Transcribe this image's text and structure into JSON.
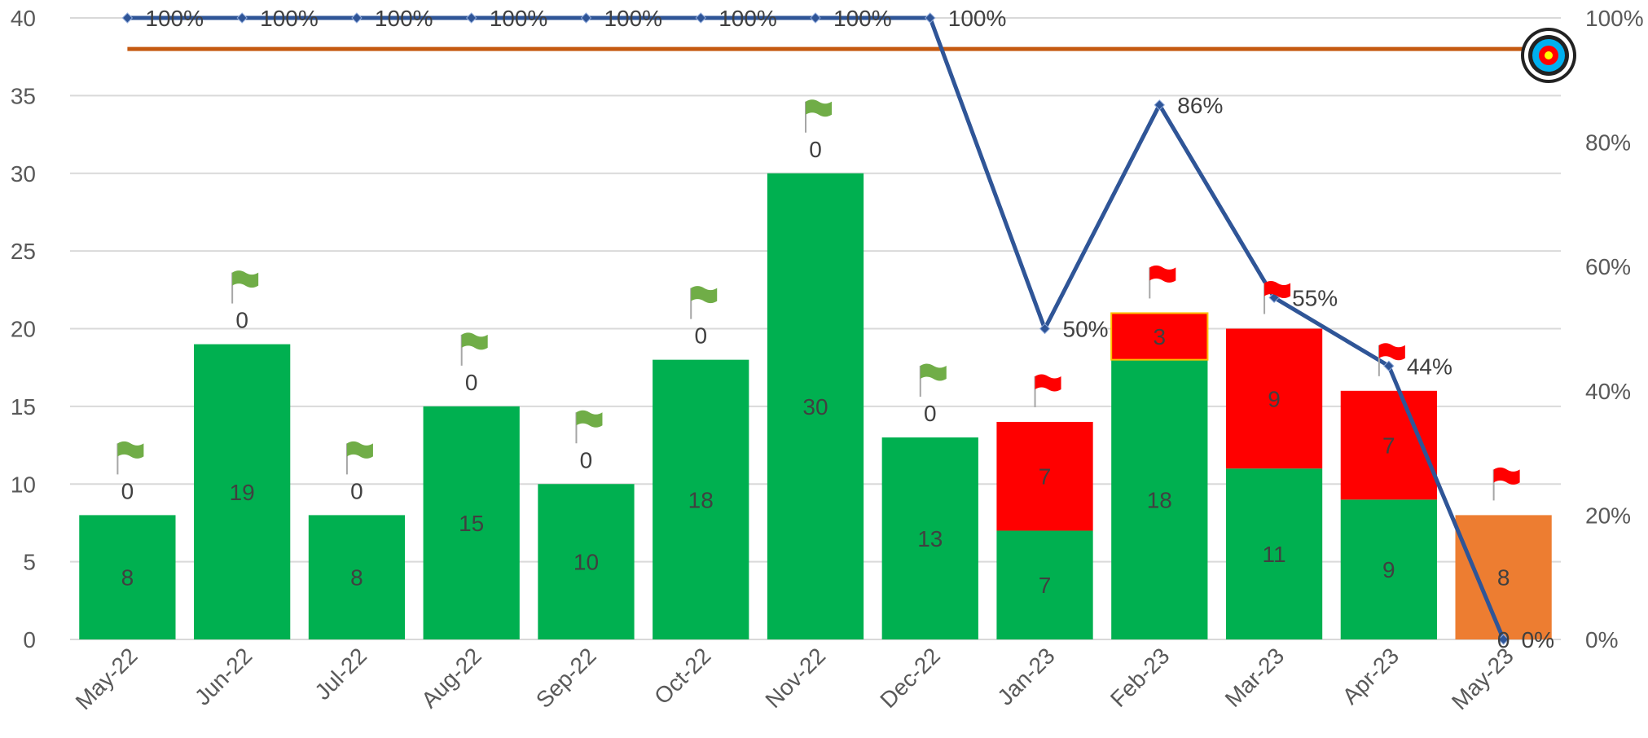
{
  "chart_data": {
    "type": "bar",
    "stacked": true,
    "categories": [
      "May-22",
      "Jun-22",
      "Jul-22",
      "Aug-22",
      "Sep-22",
      "Oct-22",
      "Nov-22",
      "Dec-22",
      "Jan-23",
      "Feb-23",
      "Mar-23",
      "Apr-23",
      "May-23"
    ],
    "y_left": {
      "min": 0,
      "max": 40,
      "step": 5
    },
    "y_right": {
      "min": 0,
      "max": 1,
      "step": 0.2,
      "format": "percent"
    },
    "y_right_ticks": [
      "0%",
      "20%",
      "40%",
      "60%",
      "80%",
      "100%"
    ],
    "grid": true,
    "series": [
      {
        "kind": "bar",
        "color": "#00b050",
        "values": [
          8,
          19,
          8,
          15,
          10,
          18,
          30,
          13,
          7,
          18,
          11,
          9,
          null
        ],
        "labels": [
          "8",
          "19",
          "8",
          "15",
          "10",
          "18",
          "30",
          "13",
          "7",
          "18",
          "11",
          "9",
          ""
        ]
      },
      {
        "kind": "bar",
        "color": "#ff0000",
        "values": [
          0,
          0,
          0,
          0,
          0,
          0,
          0,
          0,
          7,
          3,
          9,
          7,
          0
        ],
        "labels": [
          "0",
          "0",
          "0",
          "0",
          "0",
          "0",
          "0",
          "0",
          "7",
          "3",
          "9",
          "7",
          "0"
        ]
      },
      {
        "kind": "bar",
        "color": "#ed7d31",
        "values": [
          null,
          null,
          null,
          null,
          null,
          null,
          null,
          null,
          null,
          null,
          null,
          null,
          8
        ],
        "labels": [
          "",
          "",
          "",
          "",
          "",
          "",
          "",
          "",
          "",
          "",
          "",
          "",
          "8"
        ]
      },
      {
        "kind": "line",
        "axis": "right",
        "color": "#2f5597",
        "values": [
          1,
          1,
          1,
          1,
          1,
          1,
          1,
          1,
          0.5,
          0.86,
          0.55,
          0.44,
          0
        ],
        "labels": [
          "100%",
          "100%",
          "100%",
          "100%",
          "100%",
          "100%",
          "100%",
          "100%",
          "50%",
          "86%",
          "55%",
          "44%",
          "0%"
        ]
      },
      {
        "kind": "target",
        "axis": "right",
        "color": "#c55a11",
        "value": 0.95
      }
    ],
    "flags": [
      "green",
      "green",
      "green",
      "green",
      "green",
      "green",
      "green",
      "green",
      "red",
      "red",
      "red",
      "red",
      "red"
    ],
    "flag_colors": {
      "green": "#70ad47",
      "red": "#ff0000"
    },
    "target_icon": "archery-target-icon"
  }
}
